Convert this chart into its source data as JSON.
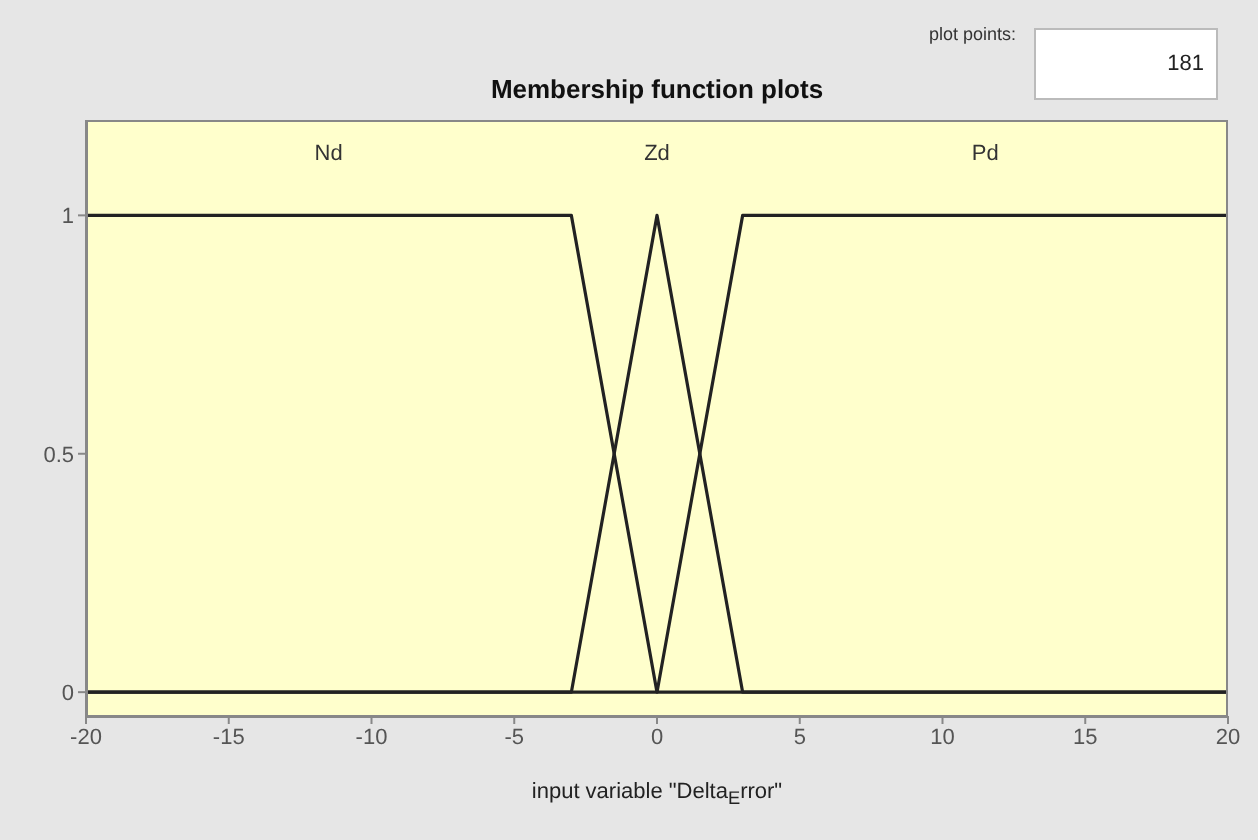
{
  "chart_data": {
    "type": "line",
    "title": "Membership function plots",
    "xlabel": "input variable \"Delta$_{E}$rror\"",
    "annotations": [
      "plot points:",
      "181"
    ],
    "series": [
      {
        "name": "Nd",
        "color": "#222222",
        "x": [
          -20,
          -3,
          0,
          20
        ],
        "values": [
          1,
          1,
          0,
          0
        ]
      },
      {
        "name": "Zd",
        "color": "#222222",
        "x": [
          -20,
          -3,
          0,
          3,
          20
        ],
        "values": [
          0,
          0,
          1,
          0,
          0
        ]
      },
      {
        "name": "Pd",
        "color": "#222222",
        "x": [
          -20,
          0,
          3,
          20
        ],
        "values": [
          0,
          0,
          1,
          1
        ]
      }
    ],
    "xlim": [
      -20,
      20
    ],
    "xticks": [
      -20,
      -15,
      -10,
      -5,
      0,
      5,
      10,
      15,
      20
    ],
    "ylim": [
      -0.05,
      1.2
    ],
    "yticks": [
      0,
      0.5,
      1
    ],
    "grid": false,
    "marker": "none",
    "line_style": "solid"
  }
}
